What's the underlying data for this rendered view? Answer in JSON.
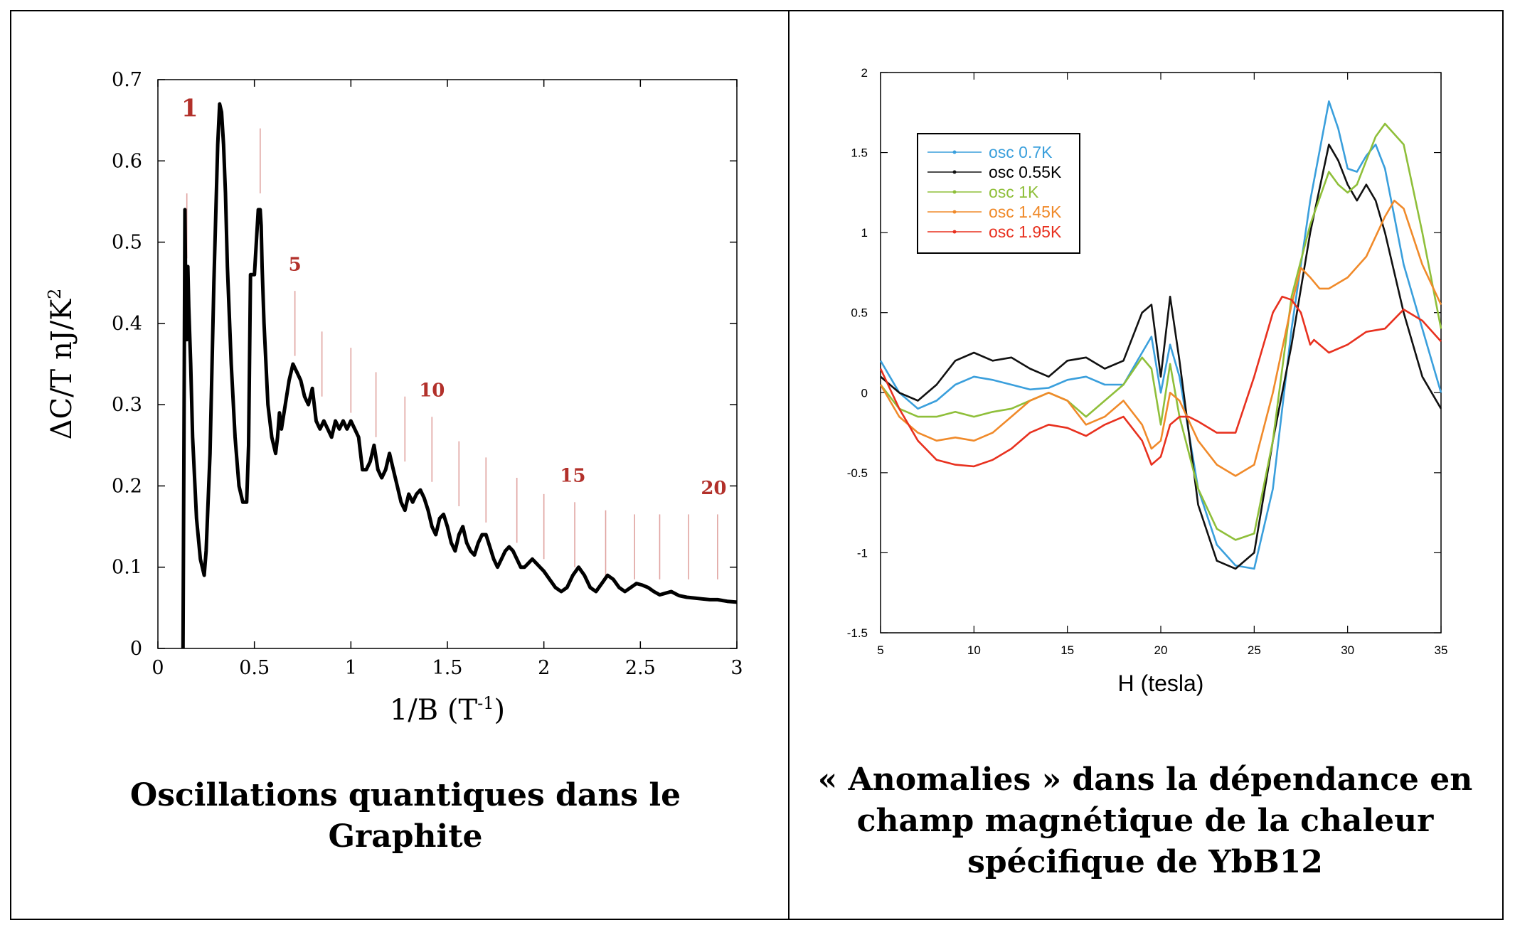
{
  "left_caption": "Oscillations quantiques dans le Graphite",
  "right_caption": "« Anomalies » dans la dépendance en champ magnétique de la chaleur spécifique de YbB12",
  "colors": {
    "marker": "#b2302a",
    "marker_line": "#e0a3a0",
    "curve": "#000000"
  },
  "chart_data": [
    {
      "type": "line",
      "title": "Oscillations quantiques dans le Graphite",
      "xlabel": "1/B (T",
      "xlabel_sup": "-1",
      "xlabel_close": ")",
      "ylabel": "ΔC/T nJ/K",
      "ylabel_sup": "2",
      "xlim": [
        0,
        3
      ],
      "ylim": [
        0,
        0.7
      ],
      "x_ticks": [
        0,
        0.5,
        1,
        1.5,
        2,
        2.5,
        3
      ],
      "x_tick_labels": [
        "0",
        "0.5",
        "1",
        "1.5",
        "2",
        "2.5",
        "3"
      ],
      "y_ticks": [
        0,
        0.1,
        0.2,
        0.3,
        0.4,
        0.5,
        0.6,
        0.7
      ],
      "y_tick_labels": [
        "0",
        "0.1",
        "0.2",
        "0.3",
        "0.4",
        "0.5",
        "0.6",
        "0.7"
      ],
      "landau_level_markers": {
        "x": [
          0.15,
          0.53,
          0.71,
          0.85,
          1.0,
          1.13,
          1.28,
          1.42,
          1.56,
          1.7,
          1.86,
          2.0,
          2.16,
          2.32,
          2.47,
          2.6,
          2.75,
          2.9
        ],
        "y_top": [
          0.56,
          0.64,
          0.44,
          0.39,
          0.37,
          0.34,
          0.31,
          0.285,
          0.255,
          0.235,
          0.21,
          0.19,
          0.18,
          0.17,
          0.165,
          0.165,
          0.165,
          0.165
        ],
        "labels": [
          {
            "text": "1",
            "x": 0.165,
            "y": 0.655
          },
          {
            "text": "5",
            "x": 0.71,
            "y": 0.465
          },
          {
            "text": "10",
            "x": 1.42,
            "y": 0.31
          },
          {
            "text": "15",
            "x": 2.15,
            "y": 0.205
          },
          {
            "text": "20",
            "x": 2.88,
            "y": 0.19
          }
        ]
      },
      "series": [
        {
          "name": "ΔC/T",
          "x": [
            0.13,
            0.135,
            0.14,
            0.145,
            0.15,
            0.155,
            0.16,
            0.17,
            0.18,
            0.2,
            0.22,
            0.24,
            0.25,
            0.27,
            0.29,
            0.31,
            0.32,
            0.33,
            0.34,
            0.35,
            0.36,
            0.38,
            0.4,
            0.42,
            0.44,
            0.46,
            0.47,
            0.48,
            0.5,
            0.51,
            0.52,
            0.53,
            0.535,
            0.54,
            0.55,
            0.57,
            0.59,
            0.61,
            0.62,
            0.63,
            0.64,
            0.66,
            0.68,
            0.7,
            0.71,
            0.72,
            0.74,
            0.76,
            0.78,
            0.8,
            0.82,
            0.84,
            0.86,
            0.88,
            0.9,
            0.92,
            0.94,
            0.96,
            0.98,
            1.0,
            1.02,
            1.04,
            1.06,
            1.08,
            1.1,
            1.12,
            1.14,
            1.16,
            1.18,
            1.2,
            1.22,
            1.24,
            1.26,
            1.28,
            1.3,
            1.32,
            1.34,
            1.36,
            1.38,
            1.4,
            1.42,
            1.44,
            1.46,
            1.48,
            1.5,
            1.52,
            1.54,
            1.56,
            1.58,
            1.6,
            1.62,
            1.64,
            1.66,
            1.68,
            1.7,
            1.72,
            1.74,
            1.76,
            1.78,
            1.8,
            1.82,
            1.84,
            1.86,
            1.88,
            1.9,
            1.92,
            1.94,
            1.96,
            1.98,
            2.0,
            2.03,
            2.06,
            2.09,
            2.12,
            2.15,
            2.18,
            2.21,
            2.24,
            2.27,
            2.3,
            2.33,
            2.36,
            2.39,
            2.42,
            2.45,
            2.48,
            2.51,
            2.54,
            2.57,
            2.6,
            2.63,
            2.66,
            2.7,
            2.74,
            2.78,
            2.82,
            2.86,
            2.9,
            2.95,
            3.0
          ],
          "y": [
            0.0,
            0.25,
            0.54,
            0.42,
            0.38,
            0.47,
            0.42,
            0.35,
            0.26,
            0.16,
            0.11,
            0.09,
            0.12,
            0.24,
            0.45,
            0.62,
            0.67,
            0.66,
            0.62,
            0.56,
            0.47,
            0.35,
            0.26,
            0.2,
            0.18,
            0.18,
            0.25,
            0.46,
            0.46,
            0.5,
            0.54,
            0.54,
            0.52,
            0.47,
            0.4,
            0.3,
            0.26,
            0.24,
            0.26,
            0.29,
            0.27,
            0.3,
            0.33,
            0.35,
            0.345,
            0.34,
            0.33,
            0.31,
            0.3,
            0.32,
            0.28,
            0.27,
            0.28,
            0.27,
            0.26,
            0.28,
            0.27,
            0.28,
            0.27,
            0.28,
            0.27,
            0.26,
            0.22,
            0.22,
            0.23,
            0.25,
            0.22,
            0.21,
            0.22,
            0.24,
            0.22,
            0.2,
            0.18,
            0.17,
            0.19,
            0.18,
            0.19,
            0.195,
            0.185,
            0.17,
            0.15,
            0.14,
            0.16,
            0.165,
            0.15,
            0.13,
            0.12,
            0.14,
            0.15,
            0.13,
            0.12,
            0.115,
            0.13,
            0.14,
            0.14,
            0.125,
            0.11,
            0.1,
            0.11,
            0.12,
            0.125,
            0.12,
            0.11,
            0.1,
            0.1,
            0.105,
            0.11,
            0.105,
            0.1,
            0.095,
            0.085,
            0.075,
            0.07,
            0.075,
            0.09,
            0.1,
            0.09,
            0.075,
            0.07,
            0.08,
            0.09,
            0.085,
            0.075,
            0.07,
            0.075,
            0.08,
            0.078,
            0.075,
            0.07,
            0.066,
            0.068,
            0.07,
            0.065,
            0.063,
            0.062,
            0.061,
            0.06,
            0.06,
            0.058,
            0.057
          ]
        }
      ]
    },
    {
      "type": "line",
      "title": "« Anomalies » dans la dépendance en champ magnétique de la chaleur spécifique de YbB12",
      "xlabel": "H (tesla)",
      "ylabel": "",
      "xlim": [
        5,
        35
      ],
      "ylim": [
        -1.5,
        2
      ],
      "x_ticks": [
        5,
        10,
        15,
        20,
        25,
        30,
        35
      ],
      "x_tick_labels": [
        "5",
        "10",
        "15",
        "20",
        "25",
        "30",
        "35"
      ],
      "y_ticks": [
        -1.5,
        -1,
        -0.5,
        0,
        0.5,
        1,
        1.5,
        2
      ],
      "y_tick_labels": [
        "-1.5",
        "-1",
        "-0.5",
        "0",
        "0.5",
        "1",
        "1.5",
        "2"
      ],
      "legend": {
        "position": "top-left",
        "entries": [
          "osc 0.7K",
          "osc 0.55K",
          "osc 1K",
          "osc 1.45K",
          "osc 1.95K"
        ]
      },
      "series": [
        {
          "name": "osc 0.7K",
          "color": "#3a9fdc",
          "x": [
            5,
            6,
            7,
            8,
            9,
            10,
            11,
            12,
            13,
            14,
            15,
            16,
            17,
            18,
            19,
            19.5,
            20,
            20.5,
            21,
            22,
            23,
            24,
            25,
            26,
            27,
            28,
            29,
            29.5,
            30,
            30.5,
            31,
            31.5,
            32,
            33,
            34,
            35
          ],
          "y": [
            0.2,
            0.0,
            -0.1,
            -0.05,
            0.05,
            0.1,
            0.08,
            0.05,
            0.02,
            0.03,
            0.08,
            0.1,
            0.05,
            0.05,
            0.25,
            0.35,
            0.0,
            0.3,
            0.1,
            -0.6,
            -0.95,
            -1.08,
            -1.1,
            -0.6,
            0.4,
            1.2,
            1.82,
            1.65,
            1.4,
            1.38,
            1.48,
            1.55,
            1.4,
            0.8,
            0.4,
            0.0
          ]
        },
        {
          "name": "osc 0.55K",
          "color": "#111111",
          "x": [
            5,
            6,
            7,
            8,
            9,
            10,
            11,
            12,
            13,
            14,
            15,
            16,
            17,
            18,
            19,
            19.5,
            20,
            20.5,
            21,
            22,
            23,
            24,
            25,
            26,
            27,
            28,
            29,
            29.5,
            30,
            30.5,
            31,
            31.5,
            32,
            33,
            34,
            35
          ],
          "y": [
            0.1,
            0.0,
            -0.05,
            0.05,
            0.2,
            0.25,
            0.2,
            0.22,
            0.15,
            0.1,
            0.2,
            0.22,
            0.15,
            0.2,
            0.5,
            0.55,
            0.1,
            0.6,
            0.2,
            -0.7,
            -1.05,
            -1.1,
            -1.0,
            -0.3,
            0.3,
            1.0,
            1.55,
            1.45,
            1.3,
            1.2,
            1.3,
            1.2,
            1.0,
            0.5,
            0.1,
            -0.1
          ]
        },
        {
          "name": "osc 1K",
          "color": "#8fbf3a",
          "x": [
            5,
            6,
            7,
            8,
            9,
            10,
            11,
            12,
            13,
            14,
            15,
            16,
            17,
            18,
            19,
            19.5,
            20,
            20.5,
            21,
            22,
            23,
            24,
            25,
            26,
            27,
            28,
            29,
            29.5,
            30,
            30.5,
            31,
            31.5,
            32,
            33,
            34,
            35
          ],
          "y": [
            0.05,
            -0.1,
            -0.15,
            -0.15,
            -0.12,
            -0.15,
            -0.12,
            -0.1,
            -0.05,
            0.0,
            -0.05,
            -0.15,
            -0.05,
            0.05,
            0.22,
            0.15,
            -0.2,
            0.18,
            -0.15,
            -0.6,
            -0.85,
            -0.92,
            -0.88,
            -0.3,
            0.6,
            1.05,
            1.38,
            1.3,
            1.25,
            1.3,
            1.45,
            1.6,
            1.68,
            1.55,
            1.0,
            0.4
          ]
        },
        {
          "name": "osc 1.45K",
          "color": "#f08a2a",
          "x": [
            5,
            6,
            7,
            8,
            9,
            10,
            11,
            12,
            13,
            14,
            15,
            16,
            17,
            18,
            19,
            19.5,
            20,
            20.5,
            21,
            22,
            23,
            24,
            25,
            26,
            27,
            27.5,
            28,
            28.5,
            29,
            30,
            31,
            32,
            32.5,
            33,
            34,
            35
          ],
          "y": [
            0.05,
            -0.15,
            -0.25,
            -0.3,
            -0.28,
            -0.3,
            -0.25,
            -0.15,
            -0.05,
            0.0,
            -0.05,
            -0.2,
            -0.15,
            -0.05,
            -0.2,
            -0.35,
            -0.3,
            0.0,
            -0.05,
            -0.3,
            -0.45,
            -0.52,
            -0.45,
            0.0,
            0.55,
            0.78,
            0.72,
            0.65,
            0.65,
            0.72,
            0.85,
            1.1,
            1.2,
            1.15,
            0.8,
            0.55
          ]
        },
        {
          "name": "osc 1.95K",
          "color": "#e8311f",
          "x": [
            5,
            6,
            7,
            8,
            9,
            10,
            11,
            12,
            13,
            14,
            15,
            16,
            17,
            18,
            19,
            19.5,
            20,
            20.5,
            21,
            21.5,
            22,
            23,
            24,
            25,
            26,
            26.5,
            27,
            27.5,
            28,
            28.2,
            29,
            30,
            31,
            32,
            33,
            34,
            35
          ],
          "y": [
            0.15,
            -0.1,
            -0.3,
            -0.42,
            -0.45,
            -0.46,
            -0.42,
            -0.35,
            -0.25,
            -0.2,
            -0.22,
            -0.27,
            -0.2,
            -0.15,
            -0.3,
            -0.45,
            -0.4,
            -0.2,
            -0.15,
            -0.15,
            -0.18,
            -0.25,
            -0.25,
            0.1,
            0.5,
            0.6,
            0.58,
            0.5,
            0.3,
            0.33,
            0.25,
            0.3,
            0.38,
            0.4,
            0.52,
            0.45,
            0.32
          ]
        }
      ]
    }
  ]
}
